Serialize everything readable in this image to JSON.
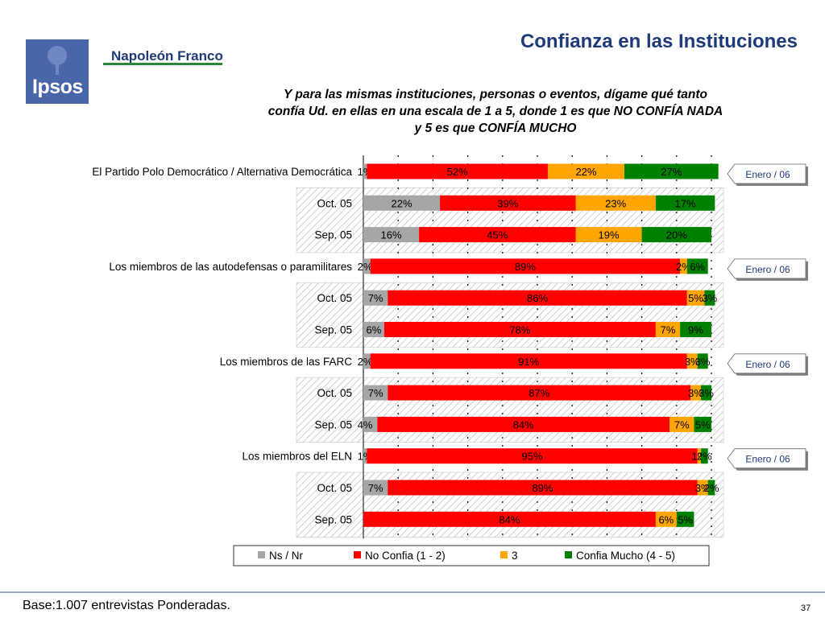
{
  "header": {
    "title": "Confianza en las Instituciones",
    "brand": "Napoleón Franco",
    "logo_text": "Ipsos",
    "question": "Y para las mismas instituciones, personas o eventos, dígame qué tanto confía Ud. en ellas en una escala de 1 a 5, donde 1 es que NO CONFÍA NADA y 5 es que CONFÍA MUCHO"
  },
  "footer": {
    "base": "Base:1.007 entrevistas Ponderadas.",
    "page": "37"
  },
  "colors": {
    "ns": "#a6a6a6",
    "no": "#ff0000",
    "three": "#ffa500",
    "mucho": "#008000",
    "title": "#1f3a78"
  },
  "chart_data": {
    "type": "bar",
    "orientation": "horizontal-stacked-100",
    "series_names": [
      "Ns / Nr",
      "No Confia (1 - 2)",
      "3",
      "Confia Mucho (4 - 5)"
    ],
    "rows": [
      {
        "label": "El Partido Polo Democrático / Alternativa Democrática",
        "values": [
          1,
          52,
          22,
          27
        ],
        "labels": [
          "1%",
          "52%",
          "22%",
          "27%"
        ],
        "callout": "Enero / 06",
        "hatched": false
      },
      {
        "label": "Oct. 05",
        "values": [
          22,
          39,
          23,
          17
        ],
        "labels": [
          "22%",
          "39%",
          "23%",
          "17%"
        ],
        "hatched": true
      },
      {
        "label": "Sep. 05",
        "values": [
          16,
          45,
          19,
          20
        ],
        "labels": [
          "16%",
          "45%",
          "19%",
          "20%"
        ],
        "hatched": true
      },
      {
        "label": "Los miembros de las autodefensas o paramilitares",
        "values": [
          2,
          89,
          2,
          6
        ],
        "labels": [
          "2%",
          "89%",
          "2%",
          "6%"
        ],
        "callout": "Enero / 06",
        "hatched": false
      },
      {
        "label": "Oct. 05",
        "values": [
          7,
          86,
          5,
          3
        ],
        "labels": [
          "7%",
          "86%",
          "5%",
          "3%"
        ],
        "hatched": true
      },
      {
        "label": "Sep. 05",
        "values": [
          6,
          78,
          7,
          9
        ],
        "labels": [
          "6%",
          "78%",
          "7%",
          "9%"
        ],
        "hatched": true
      },
      {
        "label": "Los miembros de las FARC",
        "values": [
          2,
          91,
          3,
          3
        ],
        "labels": [
          "2%",
          "91%",
          "3%",
          "3%"
        ],
        "callout": "Enero / 06",
        "hatched": false
      },
      {
        "label": "Oct. 05",
        "values": [
          7,
          87,
          3,
          3
        ],
        "labels": [
          "7%",
          "87%",
          "3%",
          "3%"
        ],
        "hatched": true
      },
      {
        "label": "Sep. 05",
        "values": [
          4,
          84,
          7,
          5
        ],
        "labels": [
          "4%",
          "84%",
          "7%",
          "5%"
        ],
        "hatched": true
      },
      {
        "label": "Los miembros del ELN",
        "values": [
          1,
          95,
          1,
          2
        ],
        "labels": [
          "1%",
          "95%",
          "1%",
          "2%"
        ],
        "callout": "Enero / 06",
        "hatched": false
      },
      {
        "label": "Oct. 05",
        "values": [
          7,
          89,
          3,
          2
        ],
        "labels": [
          "7%",
          "89%",
          "3%",
          "2%"
        ],
        "hatched": true
      },
      {
        "label": "Sep. 05",
        "values": [
          0,
          84,
          6,
          5
        ],
        "labels": [
          "",
          "84%",
          "6%",
          "5%"
        ],
        "hatched": true
      }
    ],
    "xlim": [
      0,
      100
    ],
    "grid": true,
    "legend": "bottom"
  }
}
